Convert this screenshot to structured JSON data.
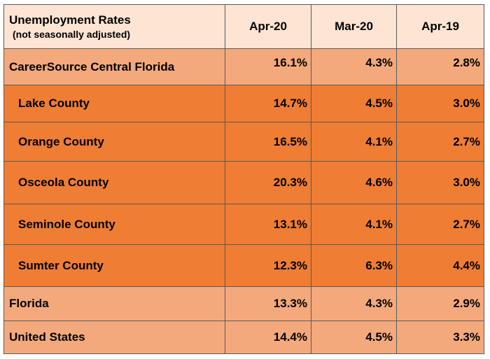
{
  "header": {
    "title": "Unemployment Rates",
    "subtitle": "(not seasonally adjusted)",
    "columns": [
      "Apr-20",
      "Mar-20",
      "Apr-19"
    ]
  },
  "rows": [
    {
      "name": "CareerSource Central Florida",
      "values": [
        "16.1%",
        "4.3%",
        "2.8%"
      ]
    },
    {
      "name": "Lake County",
      "values": [
        "14.7%",
        "4.5%",
        "3.0%"
      ]
    },
    {
      "name": "Orange County",
      "values": [
        "16.5%",
        "4.1%",
        "2.7%"
      ]
    },
    {
      "name": "Osceola County",
      "values": [
        "20.3%",
        "4.6%",
        "3.0%"
      ]
    },
    {
      "name": "Seminole County",
      "values": [
        "13.1%",
        "4.1%",
        "2.7%"
      ]
    },
    {
      "name": "Sumter County",
      "values": [
        "12.3%",
        "6.3%",
        "4.4%"
      ]
    },
    {
      "name": "Florida",
      "values": [
        "13.3%",
        "4.3%",
        "2.9%"
      ]
    },
    {
      "name": "United States",
      "values": [
        "14.4%",
        "4.5%",
        "3.3%"
      ]
    }
  ],
  "colors": {
    "header_bg": "#fde4d3",
    "summary_row_bg": "#f4a97c",
    "county_row_bg": "#ef7d34"
  }
}
